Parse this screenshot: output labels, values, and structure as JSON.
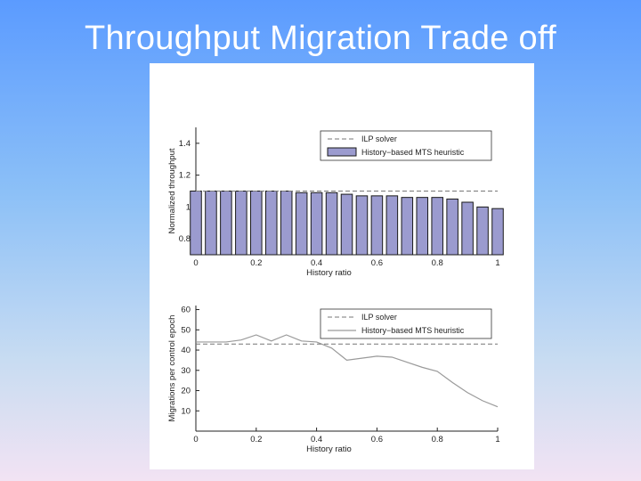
{
  "slide": {
    "title": "Throughput Migration Trade off"
  },
  "colors": {
    "bar_fill": "#9b9bcf",
    "bar_stroke": "#1a1a1a",
    "ilp_line": "#777777",
    "heuristic_line": "#9a9a9a"
  },
  "chart_data": [
    {
      "type": "bar",
      "xlabel": "History ratio",
      "ylabel": "Normalized throughput",
      "xlim": [
        0,
        1
      ],
      "ylim": [
        0.7,
        1.5
      ],
      "xticks": [
        "0",
        "0.2",
        "0.4",
        "0.6",
        "0.8",
        "1"
      ],
      "yticks": [
        "0.8",
        "1",
        "1.2",
        "1.4"
      ],
      "legend_position": "top-right",
      "grid": false,
      "x": [
        0,
        0.05,
        0.1,
        0.15,
        0.2,
        0.25,
        0.3,
        0.35,
        0.4,
        0.45,
        0.5,
        0.55,
        0.6,
        0.65,
        0.7,
        0.75,
        0.8,
        0.85,
        0.9,
        0.95,
        1.0
      ],
      "series": [
        {
          "name": "ILP solver",
          "kind": "dashed-line",
          "value": 1.1
        },
        {
          "name": "History−based MTS heuristic",
          "kind": "bar",
          "values": [
            1.1,
            1.1,
            1.1,
            1.1,
            1.1,
            1.1,
            1.1,
            1.09,
            1.09,
            1.09,
            1.08,
            1.07,
            1.07,
            1.07,
            1.06,
            1.06,
            1.06,
            1.05,
            1.03,
            1.0,
            0.99
          ]
        }
      ]
    },
    {
      "type": "line",
      "xlabel": "History ratio",
      "ylabel": "Migrations per control epoch",
      "xlim": [
        0,
        1
      ],
      "ylim": [
        0,
        62
      ],
      "xticks": [
        "0",
        "0.2",
        "0.4",
        "0.6",
        "0.8",
        "1"
      ],
      "yticks": [
        "10",
        "20",
        "30",
        "40",
        "50",
        "60"
      ],
      "legend_position": "top-right",
      "grid": false,
      "series": [
        {
          "name": "ILP solver",
          "kind": "dashed-line",
          "value": 43
        },
        {
          "name": "History−based MTS heuristic",
          "kind": "line",
          "x": [
            0,
            0.05,
            0.1,
            0.15,
            0.2,
            0.25,
            0.3,
            0.35,
            0.4,
            0.45,
            0.5,
            0.55,
            0.6,
            0.65,
            0.7,
            0.75,
            0.8,
            0.85,
            0.9,
            0.95,
            1.0
          ],
          "values": [
            44,
            44,
            44,
            45,
            47.5,
            44.5,
            47.5,
            44.5,
            44,
            41,
            35,
            36,
            37,
            36.5,
            34,
            31.5,
            29.5,
            24,
            19,
            15,
            12
          ]
        }
      ]
    }
  ]
}
